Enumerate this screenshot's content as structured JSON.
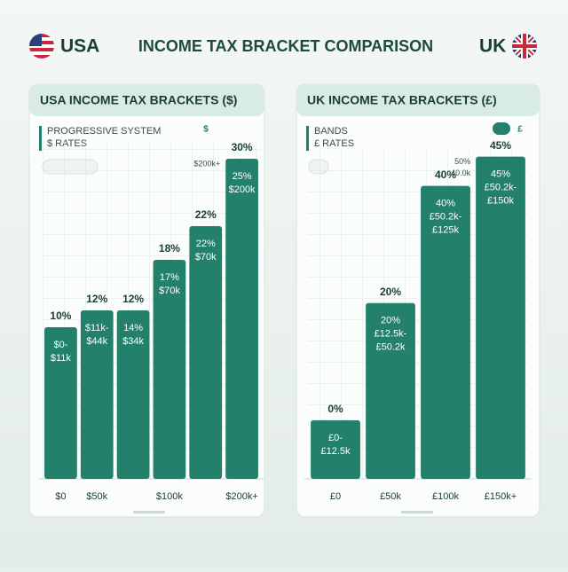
{
  "header": {
    "left_label": "USA",
    "title": "INCOME TAX BRACKET COMPARISON",
    "right_label": "UK"
  },
  "chart_data": [
    {
      "type": "bar",
      "title": "USA INCOME TAX BRACKETS ($)",
      "subtitle": [
        "PROGRESSIVE SYSTEM",
        "$ RATES"
      ],
      "chips": [
        "$"
      ],
      "categories": [
        "$0",
        "$50k",
        null,
        "$100k",
        null,
        "$200k+"
      ],
      "values": [
        10,
        12,
        12,
        18,
        22,
        30
      ],
      "value_labels": [
        "10%",
        "12%",
        "12%",
        "18%",
        "22%",
        "30%"
      ],
      "inner_labels": [
        [
          "$0-",
          "$11k"
        ],
        [
          "$11k-",
          "$44k"
        ],
        [
          "14%",
          "$34k"
        ],
        [
          "17%",
          "$70k"
        ],
        [
          "22%",
          "$70k"
        ],
        [
          "25%",
          "$200k"
        ]
      ],
      "annotations": [
        "$200k+"
      ],
      "color": "#23806a",
      "ylim": [
        -8,
        32
      ],
      "grid": true
    },
    {
      "type": "bar",
      "title": "UK INCOME TAX BRACKETS (£)",
      "subtitle": [
        "BANDS",
        "£ RATES"
      ],
      "chips": [
        "£"
      ],
      "categories": [
        "£0",
        "£50k",
        "£100k",
        "£150k+"
      ],
      "values": [
        0,
        20,
        40,
        45
      ],
      "value_labels": [
        "0%",
        "20%",
        "40%",
        "45%"
      ],
      "inner_labels": [
        [
          "£0-",
          "£12.5k"
        ],
        [
          "20%",
          "£12.5k-",
          "£50.2k"
        ],
        [
          "40%",
          "£50.2k-",
          "£125k"
        ],
        [
          "45%",
          "£50.2k-",
          "£150k"
        ]
      ],
      "annotations": [
        "50%",
        "40.0k"
      ],
      "color": "#23806a",
      "ylim": [
        -10,
        46
      ],
      "grid": true
    }
  ]
}
